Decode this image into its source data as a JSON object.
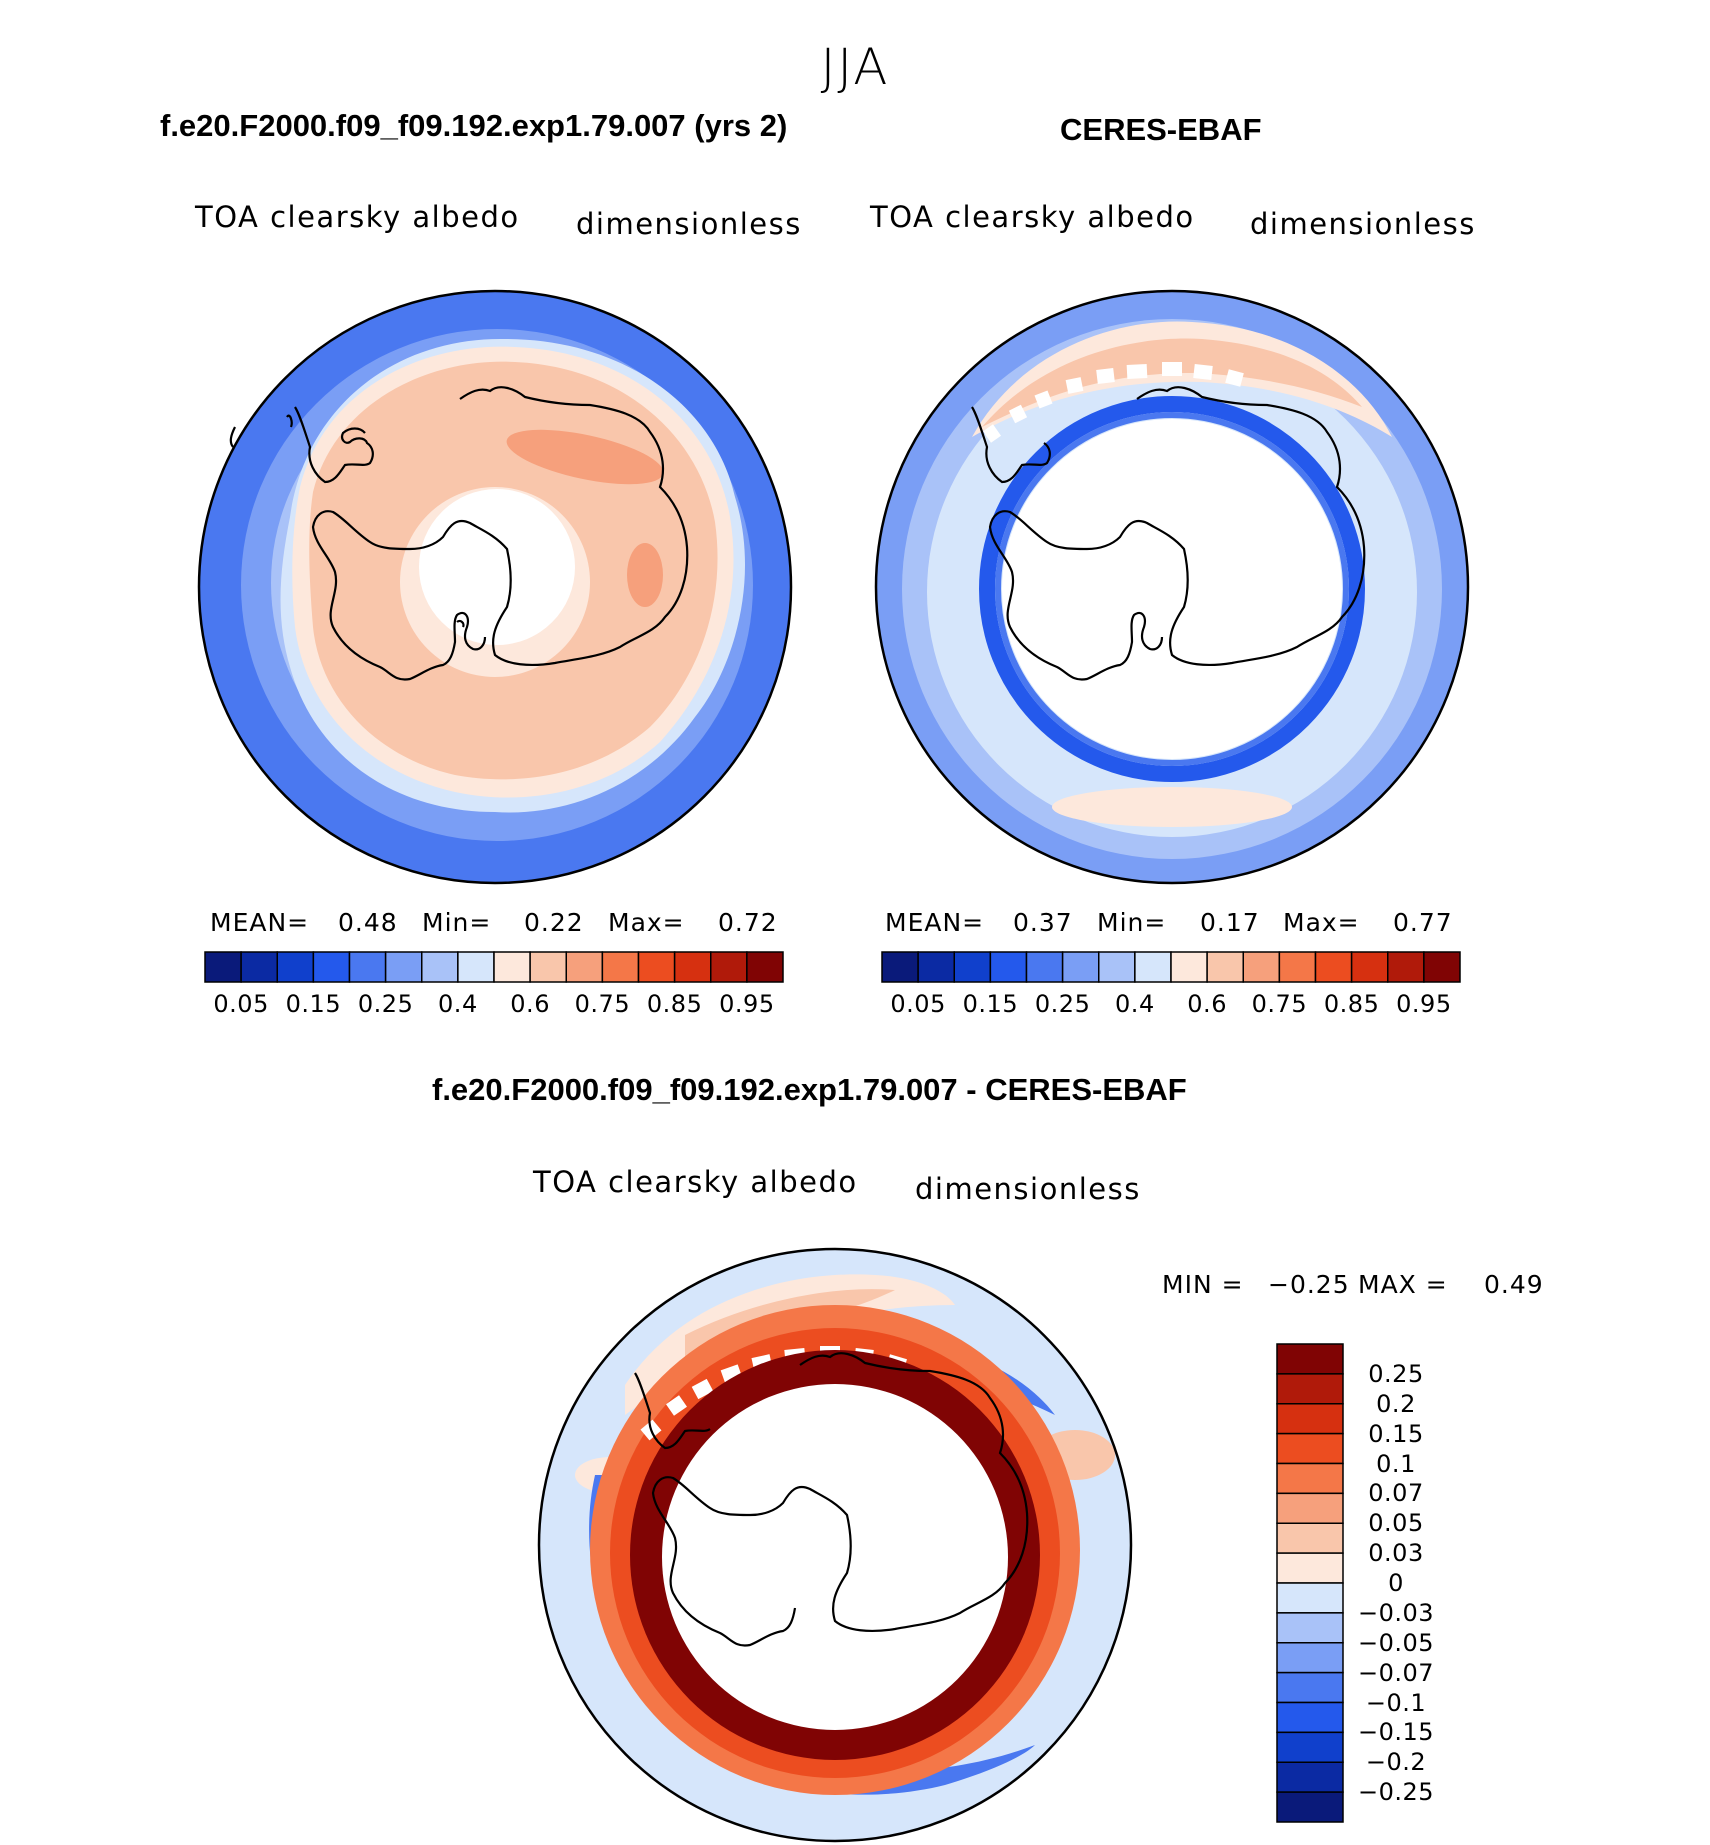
{
  "suptitle": "JJA",
  "panel1": {
    "title": "f.e20.F2000.f09_f09.192.exp1.79.007 (yrs 2)",
    "variable": "TOA clearsky albedo",
    "units": "dimensionless",
    "mean_label": "MEAN=",
    "mean": "0.48",
    "min_label": "Min=",
    "min": "0.22",
    "max_label": "Max=",
    "max": "0.72"
  },
  "panel2": {
    "title": "CERES-EBAF",
    "variable": "TOA clearsky albedo",
    "units": "dimensionless",
    "mean_label": "MEAN=",
    "mean": "0.37",
    "min_label": "Min=",
    "min": "0.17",
    "max_label": "Max=",
    "max": "0.77"
  },
  "panel3": {
    "title": "f.e20.F2000.f09_f09.192.exp1.79.007 - CERES-EBAF",
    "variable": "TOA clearsky albedo",
    "units": "dimensionless",
    "min_label": "MIN =",
    "min": "−0.25",
    "max_label": "MAX =",
    "max": "0.49"
  },
  "colorbar_abs": {
    "colors": [
      "#0a1a7a",
      "#0b2aa3",
      "#1040cc",
      "#2459ec",
      "#4a78f0",
      "#7a9ef5",
      "#a9c2f8",
      "#d6e6fb",
      "#fde8dc",
      "#f9c6ab",
      "#f6a07c",
      "#f47748",
      "#ec4d20",
      "#d63010",
      "#b01a0a",
      "#800404"
    ],
    "tick_labels": [
      "0.05",
      "0.15",
      "0.25",
      "0.4",
      "0.6",
      "0.75",
      "0.85",
      "0.95"
    ]
  },
  "colorbar_diff": {
    "colors": [
      "#800404",
      "#b01a0a",
      "#d63010",
      "#ec4d20",
      "#f47748",
      "#f6a07c",
      "#f9c6ab",
      "#fde8dc",
      "#d6e6fb",
      "#a9c2f8",
      "#7a9ef5",
      "#4a78f0",
      "#2459ec",
      "#1040cc",
      "#0b2aa3",
      "#0a1a7a"
    ],
    "tick_labels": [
      "0.25",
      "0.2",
      "0.15",
      "0.1",
      "0.07",
      "0.05",
      "0.03",
      "0",
      "−0.03",
      "−0.05",
      "−0.07",
      "−0.1",
      "−0.15",
      "−0.2",
      "−0.25"
    ]
  }
}
